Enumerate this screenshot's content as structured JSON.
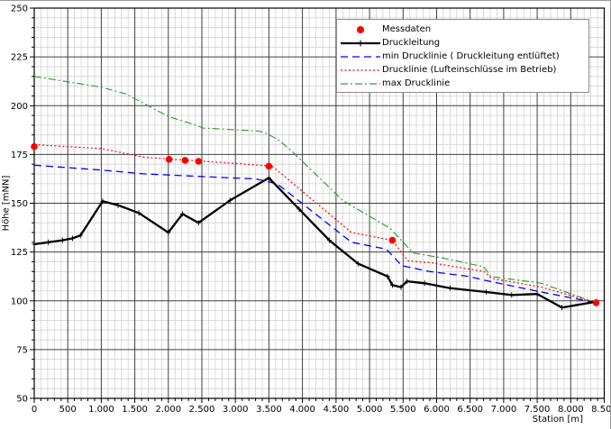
{
  "window": {
    "background": "#ffffff",
    "frame_border_color": "#9a9a9a"
  },
  "legend": {
    "position": "top-center-right",
    "border_color": "#8c8c8c",
    "background": "#ffffff"
  },
  "chart_data": {
    "type": "line",
    "title": "",
    "xlabel": "Station [m]",
    "ylabel": "Höhe [mNN]",
    "xlim": [
      0,
      8500
    ],
    "ylim": [
      50,
      250
    ],
    "grid": {
      "x_major": 500,
      "x_minor": 100,
      "y_major": 25,
      "y_minor": 5,
      "major_color": "#3f3f3f",
      "minor_color": "#d2d2d2",
      "border_color": "#000000"
    },
    "x_ticks": [
      [
        0,
        "0"
      ],
      [
        500,
        "500"
      ],
      [
        1000,
        "1.000"
      ],
      [
        1500,
        "1.500"
      ],
      [
        2000,
        "2.000"
      ],
      [
        2500,
        "2.500"
      ],
      [
        3000,
        "3.000"
      ],
      [
        3500,
        "3.500"
      ],
      [
        4000,
        "4.000"
      ],
      [
        4500,
        "4.500"
      ],
      [
        5000,
        "5.000"
      ],
      [
        5500,
        "5.500"
      ],
      [
        6000,
        "6.000"
      ],
      [
        6500,
        "6.500"
      ],
      [
        7000,
        "7.000"
      ],
      [
        7500,
        "7.500"
      ],
      [
        8000,
        "8.000"
      ],
      [
        8500,
        "8.500"
      ]
    ],
    "y_ticks": [
      [
        250,
        "250"
      ],
      [
        225,
        "225"
      ],
      [
        200,
        "200"
      ],
      [
        175,
        "175"
      ],
      [
        150,
        "150"
      ],
      [
        125,
        "125"
      ],
      [
        100,
        "100"
      ],
      [
        75,
        "75"
      ],
      [
        50,
        "50"
      ]
    ],
    "series": [
      {
        "name": "Messdaten",
        "type": "scatter",
        "color": "#ff0000",
        "marker": "circle",
        "marker_size": 3.8,
        "points": [
          [
            0,
            179
          ],
          [
            2010,
            172.5
          ],
          [
            2250,
            172
          ],
          [
            2450,
            171.5
          ],
          [
            3500,
            169
          ],
          [
            5340,
            131
          ],
          [
            8380,
            99
          ]
        ]
      },
      {
        "name": "Druckleitung",
        "type": "line",
        "color": "#000000",
        "dash": "none",
        "width": 2.3,
        "marker": "plus",
        "points": [
          [
            0,
            129
          ],
          [
            210,
            130
          ],
          [
            420,
            131
          ],
          [
            570,
            132
          ],
          [
            690,
            133.5
          ],
          [
            1020,
            151
          ],
          [
            1250,
            149
          ],
          [
            1560,
            145
          ],
          [
            2000,
            135
          ],
          [
            2210,
            144.5
          ],
          [
            2450,
            140
          ],
          [
            2920,
            151.5
          ],
          [
            3500,
            163
          ],
          [
            3950,
            147
          ],
          [
            4400,
            131
          ],
          [
            4830,
            119
          ],
          [
            5270,
            112.5
          ],
          [
            5340,
            108
          ],
          [
            5470,
            107
          ],
          [
            5560,
            110
          ],
          [
            5820,
            109
          ],
          [
            6200,
            106.5
          ],
          [
            6740,
            104.5
          ],
          [
            7120,
            103
          ],
          [
            7500,
            103.5
          ],
          [
            7870,
            96.5
          ],
          [
            8380,
            99.5
          ]
        ]
      },
      {
        "name": "min Drucklinie ( Druckleitung entlüftet)",
        "type": "line",
        "color": "#0000ff",
        "dash": "8 5",
        "width": 1.3,
        "marker": "none",
        "points": [
          [
            0,
            169.5
          ],
          [
            1000,
            167
          ],
          [
            1650,
            165
          ],
          [
            2950,
            163
          ],
          [
            3300,
            162.5
          ],
          [
            3620,
            160
          ],
          [
            4730,
            130
          ],
          [
            5250,
            126.5
          ],
          [
            5480,
            118
          ],
          [
            5900,
            115
          ],
          [
            6480,
            112.5
          ],
          [
            6720,
            110.5
          ],
          [
            7560,
            104.5
          ],
          [
            8380,
            99
          ]
        ]
      },
      {
        "name": "Drucklinie (Lufteinschlüsse im Betrieb)",
        "type": "line",
        "color": "#ff0000",
        "dash": "2 2.5",
        "width": 1.2,
        "marker": "none",
        "points": [
          [
            0,
            180
          ],
          [
            1000,
            178
          ],
          [
            1650,
            173.5
          ],
          [
            2950,
            170.5
          ],
          [
            3550,
            169
          ],
          [
            4730,
            135
          ],
          [
            5340,
            131
          ],
          [
            5570,
            120.5
          ],
          [
            5910,
            119.5
          ],
          [
            6710,
            115
          ],
          [
            6820,
            111.5
          ],
          [
            7560,
            107
          ],
          [
            8380,
            99
          ]
        ]
      },
      {
        "name": "max Drucklinie",
        "type": "line",
        "color": "#33a033",
        "dash": "8 3 2 3",
        "width": 1.2,
        "marker": "none",
        "points": [
          [
            0,
            215
          ],
          [
            1000,
            209.5
          ],
          [
            1370,
            206
          ],
          [
            2000,
            194.5
          ],
          [
            2410,
            190
          ],
          [
            2520,
            188.5
          ],
          [
            3350,
            187
          ],
          [
            3480,
            185.5
          ],
          [
            3660,
            182
          ],
          [
            3830,
            177
          ],
          [
            4600,
            151.5
          ],
          [
            5310,
            137
          ],
          [
            5650,
            124.5
          ],
          [
            6080,
            122
          ],
          [
            6700,
            117.5
          ],
          [
            6810,
            112.5
          ],
          [
            7560,
            109
          ],
          [
            8380,
            99
          ]
        ]
      }
    ]
  }
}
